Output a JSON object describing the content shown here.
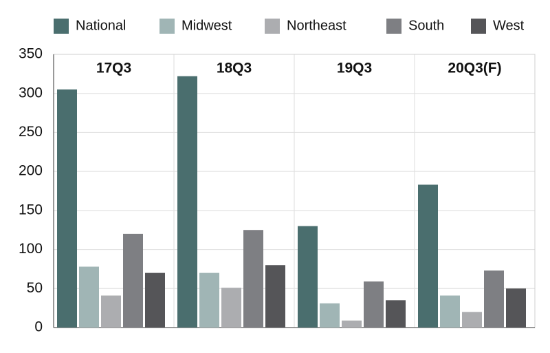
{
  "chart_data": {
    "type": "bar",
    "categories": [
      "17Q3",
      "18Q3",
      "19Q3",
      "20Q3(F)"
    ],
    "series": [
      {
        "name": "National",
        "color": "#4a6e6e",
        "values": [
          305,
          322,
          130,
          183
        ]
      },
      {
        "name": "Midwest",
        "color": "#a0b5b5",
        "values": [
          78,
          70,
          31,
          41
        ]
      },
      {
        "name": "Northeast",
        "color": "#acadb0",
        "values": [
          41,
          51,
          9,
          20
        ]
      },
      {
        "name": "South",
        "color": "#7e7f83",
        "values": [
          120,
          125,
          59,
          73
        ]
      },
      {
        "name": "West",
        "color": "#555558",
        "values": [
          70,
          80,
          35,
          50
        ]
      }
    ],
    "ylim": [
      0,
      350
    ],
    "yticks": [
      0,
      50,
      100,
      150,
      200,
      250,
      300,
      350
    ],
    "grid": true
  }
}
